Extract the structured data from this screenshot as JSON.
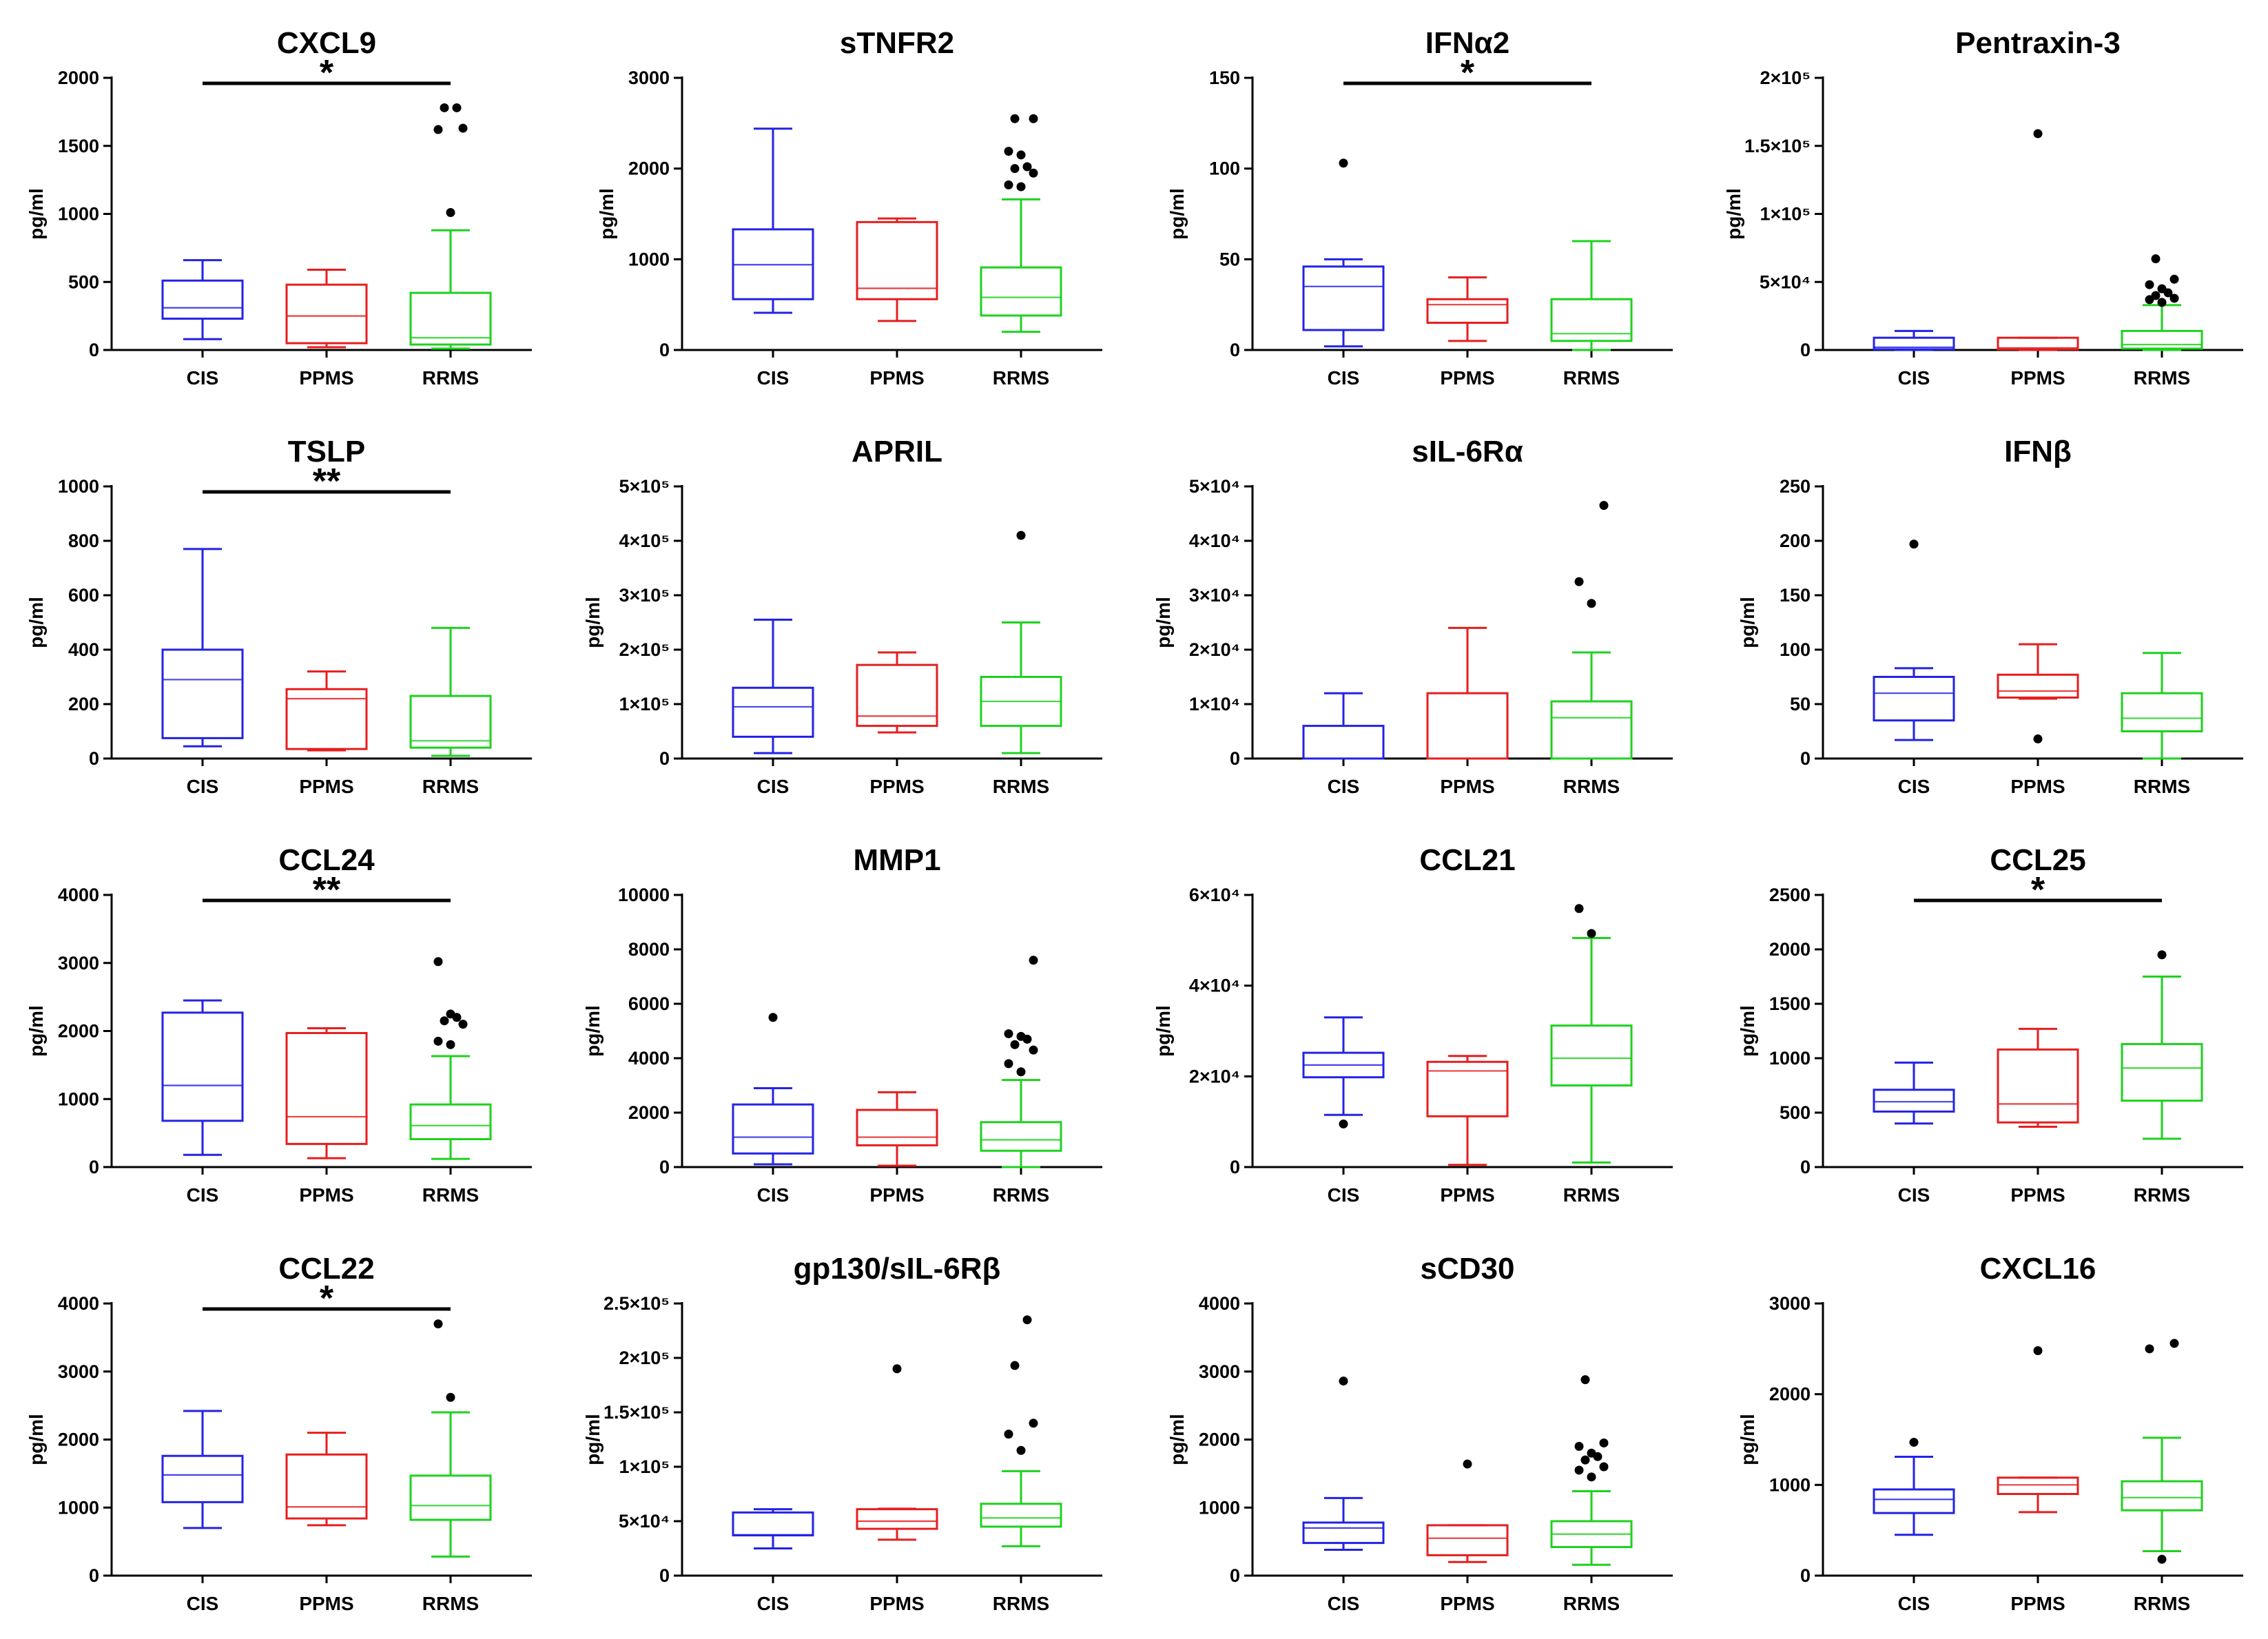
{
  "figure": {
    "ylabel": "pg/ml",
    "categories": [
      "CIS",
      "PPMS",
      "RRMS"
    ],
    "colors": {
      "CIS": "#2323e6",
      "PPMS": "#e61e1e",
      "RRMS": "#1ed21e",
      "outlier": "#000000",
      "axis": "#000000"
    }
  },
  "chart_data": [
    {
      "type": "box",
      "title": "CXCL9",
      "ylim": [
        0,
        2000
      ],
      "ticks": [
        0,
        500,
        1000,
        1500,
        2000
      ],
      "tick_labels": [
        "0",
        "500",
        "1000",
        "1500",
        "2000"
      ],
      "xlabel": "",
      "ylabel": "pg/ml",
      "categories": [
        "CIS",
        "PPMS",
        "RRMS"
      ],
      "boxes": [
        {
          "min": 80,
          "q1": 230,
          "median": 310,
          "q3": 510,
          "max": 660,
          "outliers": []
        },
        {
          "min": 20,
          "q1": 50,
          "median": 250,
          "q3": 480,
          "max": 590,
          "outliers": []
        },
        {
          "min": 10,
          "q1": 40,
          "median": 90,
          "q3": 420,
          "max": 880,
          "outliers": [
            1010,
            1620,
            1630,
            1780,
            1780
          ]
        }
      ],
      "significance": {
        "from": "CIS",
        "to": "RRMS",
        "label": "*"
      }
    },
    {
      "type": "box",
      "title": "sTNFR2",
      "ylim": [
        0,
        3000
      ],
      "ticks": [
        0,
        1000,
        2000,
        3000
      ],
      "tick_labels": [
        "0",
        "1000",
        "2000",
        "3000"
      ],
      "xlabel": "",
      "ylabel": "pg/ml",
      "categories": [
        "CIS",
        "PPMS",
        "RRMS"
      ],
      "boxes": [
        {
          "min": 410,
          "q1": 560,
          "median": 940,
          "q3": 1330,
          "max": 2440,
          "outliers": []
        },
        {
          "min": 320,
          "q1": 560,
          "median": 680,
          "q3": 1410,
          "max": 1450,
          "outliers": []
        },
        {
          "min": 200,
          "q1": 380,
          "median": 580,
          "q3": 910,
          "max": 1660,
          "outliers": [
            1800,
            1820,
            1950,
            2000,
            2020,
            2150,
            2190,
            2550,
            2550
          ]
        }
      ],
      "significance": null
    },
    {
      "type": "box",
      "title": "IFNα2",
      "ylim": [
        0,
        150
      ],
      "ticks": [
        0,
        50,
        100,
        150
      ],
      "tick_labels": [
        "0",
        "50",
        "100",
        "150"
      ],
      "xlabel": "",
      "ylabel": "pg/ml",
      "categories": [
        "CIS",
        "PPMS",
        "RRMS"
      ],
      "boxes": [
        {
          "min": 2,
          "q1": 11,
          "median": 35,
          "q3": 46,
          "max": 50,
          "outliers": [
            103
          ]
        },
        {
          "min": 5,
          "q1": 15,
          "median": 25,
          "q3": 28,
          "max": 40,
          "outliers": []
        },
        {
          "min": 0,
          "q1": 5,
          "median": 9,
          "q3": 28,
          "max": 60,
          "outliers": []
        }
      ],
      "significance": {
        "from": "CIS",
        "to": "RRMS",
        "label": "*"
      }
    },
    {
      "type": "box",
      "title": "Pentraxin-3",
      "ylim": [
        0,
        200000
      ],
      "ticks": [
        0,
        50000,
        100000,
        150000,
        200000
      ],
      "tick_labels": [
        "0",
        "5×10⁴",
        "1×10⁵",
        "1.5×10⁵",
        "2×10⁵"
      ],
      "xlabel": "",
      "ylabel": "pg/ml",
      "categories": [
        "CIS",
        "PPMS",
        "RRMS"
      ],
      "boxes": [
        {
          "min": 0,
          "q1": 500,
          "median": 2000,
          "q3": 9000,
          "max": 14000,
          "outliers": []
        },
        {
          "min": 0,
          "q1": 500,
          "median": 1500,
          "q3": 9000,
          "max": 9000,
          "outliers": [
            159000
          ]
        },
        {
          "min": 0,
          "q1": 1000,
          "median": 4000,
          "q3": 14000,
          "max": 33000,
          "outliers": [
            35000,
            37000,
            38000,
            40000,
            42000,
            45000,
            48000,
            52000,
            67000
          ]
        }
      ],
      "significance": null
    },
    {
      "type": "box",
      "title": "TSLP",
      "ylim": [
        0,
        1000
      ],
      "ticks": [
        0,
        200,
        400,
        600,
        800,
        1000
      ],
      "tick_labels": [
        "0",
        "200",
        "400",
        "600",
        "800",
        "1000"
      ],
      "xlabel": "",
      "ylabel": "pg/ml",
      "categories": [
        "CIS",
        "PPMS",
        "RRMS"
      ],
      "boxes": [
        {
          "min": 45,
          "q1": 75,
          "median": 290,
          "q3": 400,
          "max": 770,
          "outliers": []
        },
        {
          "min": 30,
          "q1": 35,
          "median": 220,
          "q3": 255,
          "max": 320,
          "outliers": []
        },
        {
          "min": 10,
          "q1": 40,
          "median": 65,
          "q3": 230,
          "max": 480,
          "outliers": []
        }
      ],
      "significance": {
        "from": "CIS",
        "to": "RRMS",
        "label": "**"
      }
    },
    {
      "type": "box",
      "title": "APRIL",
      "ylim": [
        0,
        500000
      ],
      "ticks": [
        0,
        100000,
        200000,
        300000,
        400000,
        500000
      ],
      "tick_labels": [
        "0",
        "1×10⁵",
        "2×10⁵",
        "3×10⁵",
        "4×10⁵",
        "5×10⁵"
      ],
      "xlabel": "",
      "ylabel": "pg/ml",
      "categories": [
        "CIS",
        "PPMS",
        "RRMS"
      ],
      "boxes": [
        {
          "min": 10000,
          "q1": 40000,
          "median": 95000,
          "q3": 130000,
          "max": 255000,
          "outliers": []
        },
        {
          "min": 48000,
          "q1": 60000,
          "median": 78000,
          "q3": 172000,
          "max": 195000,
          "outliers": []
        },
        {
          "min": 10000,
          "q1": 60000,
          "median": 105000,
          "q3": 150000,
          "max": 250000,
          "outliers": [
            410000
          ]
        }
      ],
      "significance": null
    },
    {
      "type": "box",
      "title": "sIL-6Rα",
      "ylim": [
        0,
        50000
      ],
      "ticks": [
        0,
        10000,
        20000,
        30000,
        40000,
        50000
      ],
      "tick_labels": [
        "0",
        "1×10⁴",
        "2×10⁴",
        "3×10⁴",
        "4×10⁴",
        "5×10⁴"
      ],
      "xlabel": "",
      "ylabel": "pg/ml",
      "categories": [
        "CIS",
        "PPMS",
        "RRMS"
      ],
      "boxes": [
        {
          "min": 0,
          "q1": 0,
          "median": 0,
          "q3": 6000,
          "max": 12000,
          "outliers": []
        },
        {
          "min": 0,
          "q1": 0,
          "median": 0,
          "q3": 12000,
          "max": 24000,
          "outliers": []
        },
        {
          "min": 0,
          "q1": 0,
          "median": 7500,
          "q3": 10500,
          "max": 19500,
          "outliers": [
            28500,
            32500,
            46500
          ]
        }
      ],
      "significance": null
    },
    {
      "type": "box",
      "title": "IFNβ",
      "ylim": [
        0,
        250
      ],
      "ticks": [
        0,
        50,
        100,
        150,
        200,
        250
      ],
      "tick_labels": [
        "0",
        "50",
        "100",
        "150",
        "200",
        "250"
      ],
      "xlabel": "",
      "ylabel": "pg/ml",
      "categories": [
        "CIS",
        "PPMS",
        "RRMS"
      ],
      "boxes": [
        {
          "min": 17,
          "q1": 35,
          "median": 60,
          "q3": 75,
          "max": 83,
          "outliers": [
            197
          ]
        },
        {
          "min": 55,
          "q1": 56,
          "median": 62,
          "q3": 77,
          "max": 105,
          "outliers": [
            18
          ]
        },
        {
          "min": 0,
          "q1": 25,
          "median": 37,
          "q3": 60,
          "max": 97,
          "outliers": []
        }
      ],
      "significance": null
    },
    {
      "type": "box",
      "title": "CCL24",
      "ylim": [
        0,
        4000
      ],
      "ticks": [
        0,
        1000,
        2000,
        3000,
        4000
      ],
      "tick_labels": [
        "0",
        "1000",
        "2000",
        "3000",
        "4000"
      ],
      "xlabel": "",
      "ylabel": "pg/ml",
      "categories": [
        "CIS",
        "PPMS",
        "RRMS"
      ],
      "boxes": [
        {
          "min": 180,
          "q1": 680,
          "median": 1200,
          "q3": 2270,
          "max": 2450,
          "outliers": []
        },
        {
          "min": 130,
          "q1": 340,
          "median": 740,
          "q3": 1970,
          "max": 2040,
          "outliers": []
        },
        {
          "min": 120,
          "q1": 410,
          "median": 610,
          "q3": 920,
          "max": 1630,
          "outliers": [
            1800,
            1850,
            2100,
            2150,
            2200,
            2250,
            3020
          ]
        }
      ],
      "significance": {
        "from": "CIS",
        "to": "RRMS",
        "label": "**"
      }
    },
    {
      "type": "box",
      "title": "MMP1",
      "ylim": [
        0,
        10000
      ],
      "ticks": [
        0,
        2000,
        4000,
        6000,
        8000,
        10000
      ],
      "tick_labels": [
        "0",
        "2000",
        "4000",
        "6000",
        "8000",
        "10000"
      ],
      "xlabel": "",
      "ylabel": "pg/ml",
      "categories": [
        "CIS",
        "PPMS",
        "RRMS"
      ],
      "boxes": [
        {
          "min": 100,
          "q1": 500,
          "median": 1100,
          "q3": 2300,
          "max": 2900,
          "outliers": [
            5500
          ]
        },
        {
          "min": 50,
          "q1": 800,
          "median": 1100,
          "q3": 2100,
          "max": 2750,
          "outliers": []
        },
        {
          "min": 0,
          "q1": 600,
          "median": 1000,
          "q3": 1650,
          "max": 3200,
          "outliers": [
            3500,
            3800,
            4300,
            4500,
            4700,
            4800,
            4900,
            7600
          ]
        }
      ],
      "significance": null
    },
    {
      "type": "box",
      "title": "CCL21",
      "ylim": [
        0,
        60000
      ],
      "ticks": [
        0,
        20000,
        40000,
        60000
      ],
      "tick_labels": [
        "0",
        "2×10⁴",
        "4×10⁴",
        "6×10⁴"
      ],
      "xlabel": "",
      "ylabel": "pg/ml",
      "categories": [
        "CIS",
        "PPMS",
        "RRMS"
      ],
      "boxes": [
        {
          "min": 11500,
          "q1": 19800,
          "median": 22500,
          "q3": 25200,
          "max": 33000,
          "outliers": [
            9500
          ]
        },
        {
          "min": 500,
          "q1": 11200,
          "median": 21200,
          "q3": 23200,
          "max": 24500,
          "outliers": []
        },
        {
          "min": 1000,
          "q1": 18000,
          "median": 24000,
          "q3": 31200,
          "max": 50500,
          "outliers": [
            51500,
            57000
          ]
        }
      ],
      "significance": null
    },
    {
      "type": "box",
      "title": "CCL25",
      "ylim": [
        0,
        2500
      ],
      "ticks": [
        0,
        500,
        1000,
        1500,
        2000,
        2500
      ],
      "tick_labels": [
        "0",
        "500",
        "1000",
        "1500",
        "2000",
        "2500"
      ],
      "xlabel": "",
      "ylabel": "pg/ml",
      "categories": [
        "CIS",
        "PPMS",
        "RRMS"
      ],
      "boxes": [
        {
          "min": 400,
          "q1": 510,
          "median": 600,
          "q3": 710,
          "max": 960,
          "outliers": []
        },
        {
          "min": 370,
          "q1": 410,
          "median": 580,
          "q3": 1080,
          "max": 1270,
          "outliers": []
        },
        {
          "min": 260,
          "q1": 610,
          "median": 910,
          "q3": 1130,
          "max": 1750,
          "outliers": [
            1950
          ]
        }
      ],
      "significance": {
        "from": "CIS",
        "to": "RRMS",
        "label": "*"
      }
    },
    {
      "type": "box",
      "title": "CCL22",
      "ylim": [
        0,
        4000
      ],
      "ticks": [
        0,
        1000,
        2000,
        3000,
        4000
      ],
      "tick_labels": [
        "0",
        "1000",
        "2000",
        "3000",
        "4000"
      ],
      "xlabel": "",
      "ylabel": "pg/ml",
      "categories": [
        "CIS",
        "PPMS",
        "RRMS"
      ],
      "boxes": [
        {
          "min": 700,
          "q1": 1080,
          "median": 1480,
          "q3": 1760,
          "max": 2420,
          "outliers": []
        },
        {
          "min": 740,
          "q1": 840,
          "median": 1010,
          "q3": 1780,
          "max": 2100,
          "outliers": []
        },
        {
          "min": 280,
          "q1": 820,
          "median": 1030,
          "q3": 1470,
          "max": 2400,
          "outliers": [
            2620,
            3700
          ]
        }
      ],
      "significance": {
        "from": "CIS",
        "to": "RRMS",
        "label": "*"
      }
    },
    {
      "type": "box",
      "title": "gp130/sIL-6Rβ",
      "ylim": [
        0,
        250000
      ],
      "ticks": [
        0,
        50000,
        100000,
        150000,
        200000,
        250000
      ],
      "tick_labels": [
        "0",
        "5×10⁴",
        "1×10⁵",
        "1.5×10⁵",
        "2×10⁵",
        "2.5×10⁵"
      ],
      "xlabel": "",
      "ylabel": "pg/ml",
      "categories": [
        "CIS",
        "PPMS",
        "RRMS"
      ],
      "boxes": [
        {
          "min": 25000,
          "q1": 37000,
          "median": 37500,
          "q3": 58000,
          "max": 61000,
          "outliers": []
        },
        {
          "min": 33000,
          "q1": 43000,
          "median": 50000,
          "q3": 61000,
          "max": 61500,
          "outliers": [
            190000
          ]
        },
        {
          "min": 27000,
          "q1": 45000,
          "median": 53000,
          "q3": 66000,
          "max": 96000,
          "outliers": [
            115000,
            130000,
            140000,
            193000,
            235000
          ]
        }
      ],
      "significance": null
    },
    {
      "type": "box",
      "title": "sCD30",
      "ylim": [
        0,
        4000
      ],
      "ticks": [
        0,
        1000,
        2000,
        3000,
        4000
      ],
      "tick_labels": [
        "0",
        "1000",
        "2000",
        "3000",
        "4000"
      ],
      "xlabel": "",
      "ylabel": "pg/ml",
      "categories": [
        "CIS",
        "PPMS",
        "RRMS"
      ],
      "boxes": [
        {
          "min": 380,
          "q1": 480,
          "median": 700,
          "q3": 780,
          "max": 1140,
          "outliers": [
            2860
          ]
        },
        {
          "min": 200,
          "q1": 300,
          "median": 550,
          "q3": 740,
          "max": 740,
          "outliers": [
            1640
          ]
        },
        {
          "min": 160,
          "q1": 420,
          "median": 610,
          "q3": 800,
          "max": 1240,
          "outliers": [
            1450,
            1550,
            1600,
            1700,
            1750,
            1800,
            1900,
            1950,
            2880
          ]
        }
      ],
      "significance": null
    },
    {
      "type": "box",
      "title": "CXCL16",
      "ylim": [
        0,
        3000
      ],
      "ticks": [
        0,
        1000,
        2000,
        3000
      ],
      "tick_labels": [
        "0",
        "1000",
        "2000",
        "3000"
      ],
      "xlabel": "",
      "ylabel": "pg/ml",
      "categories": [
        "CIS",
        "PPMS",
        "RRMS"
      ],
      "boxes": [
        {
          "min": 450,
          "q1": 690,
          "median": 840,
          "q3": 950,
          "max": 1310,
          "outliers": [
            1470
          ]
        },
        {
          "min": 700,
          "q1": 900,
          "median": 1000,
          "q3": 1080,
          "max": 1080,
          "outliers": [
            2480
          ]
        },
        {
          "min": 270,
          "q1": 720,
          "median": 860,
          "q3": 1040,
          "max": 1520,
          "outliers": [
            180,
            2500,
            2560
          ]
        }
      ],
      "significance": null
    }
  ]
}
